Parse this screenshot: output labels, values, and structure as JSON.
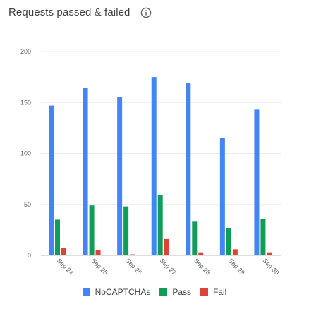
{
  "header": {
    "title": "Requests passed & failed"
  },
  "chart_data": {
    "type": "bar",
    "title": "Requests passed & failed",
    "xlabel": "",
    "ylabel": "",
    "ylim": [
      0,
      200
    ],
    "yticks": [
      0,
      50,
      100,
      150,
      200
    ],
    "grid": true,
    "legend_position": "bottom",
    "categories": [
      "Sep 24",
      "Sep 25",
      "Sep 26",
      "Sep 27",
      "Sep 28",
      "Sep 29",
      "Sep 30"
    ],
    "series": [
      {
        "name": "NoCAPTCHAs",
        "color": "#4285f4",
        "values": [
          147,
          164,
          155,
          175,
          169,
          115,
          143
        ]
      },
      {
        "name": "Pass",
        "color": "#0f9d58",
        "values": [
          35,
          49,
          48,
          59,
          33,
          27,
          36
        ]
      },
      {
        "name": "Fail",
        "color": "#db4437",
        "values": [
          7,
          5,
          1,
          16,
          3,
          6,
          3
        ]
      }
    ]
  }
}
